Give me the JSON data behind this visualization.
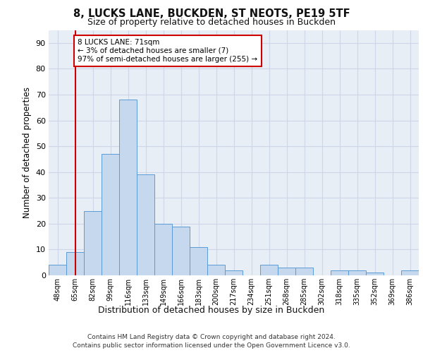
{
  "title1": "8, LUCKS LANE, BUCKDEN, ST NEOTS, PE19 5TF",
  "title2": "Size of property relative to detached houses in Buckden",
  "xlabel": "Distribution of detached houses by size in Buckden",
  "ylabel": "Number of detached properties",
  "bins": [
    "48sqm",
    "65sqm",
    "82sqm",
    "99sqm",
    "116sqm",
    "133sqm",
    "149sqm",
    "166sqm",
    "183sqm",
    "200sqm",
    "217sqm",
    "234sqm",
    "251sqm",
    "268sqm",
    "285sqm",
    "302sqm",
    "318sqm",
    "335sqm",
    "352sqm",
    "369sqm",
    "386sqm"
  ],
  "values": [
    4,
    9,
    25,
    47,
    68,
    39,
    20,
    19,
    11,
    4,
    2,
    0,
    4,
    3,
    3,
    0,
    2,
    2,
    1,
    0,
    2
  ],
  "bar_color": "#c5d8ed",
  "bar_edge_color": "#5b9bd5",
  "vline_x_index": 1,
  "vline_color": "#cc0000",
  "annotation_line1": "8 LUCKS LANE: 71sqm",
  "annotation_line2": "← 3% of detached houses are smaller (7)",
  "annotation_line3": "97% of semi-detached houses are larger (255) →",
  "annotation_box_color": "#ffffff",
  "annotation_box_edge": "#cc0000",
  "grid_color": "#cdd7e8",
  "background_color": "#e8eef6",
  "footer1": "Contains HM Land Registry data © Crown copyright and database right 2024.",
  "footer2": "Contains public sector information licensed under the Open Government Licence v3.0.",
  "ylim": [
    0,
    95
  ],
  "yticks": [
    0,
    10,
    20,
    30,
    40,
    50,
    60,
    70,
    80,
    90
  ]
}
